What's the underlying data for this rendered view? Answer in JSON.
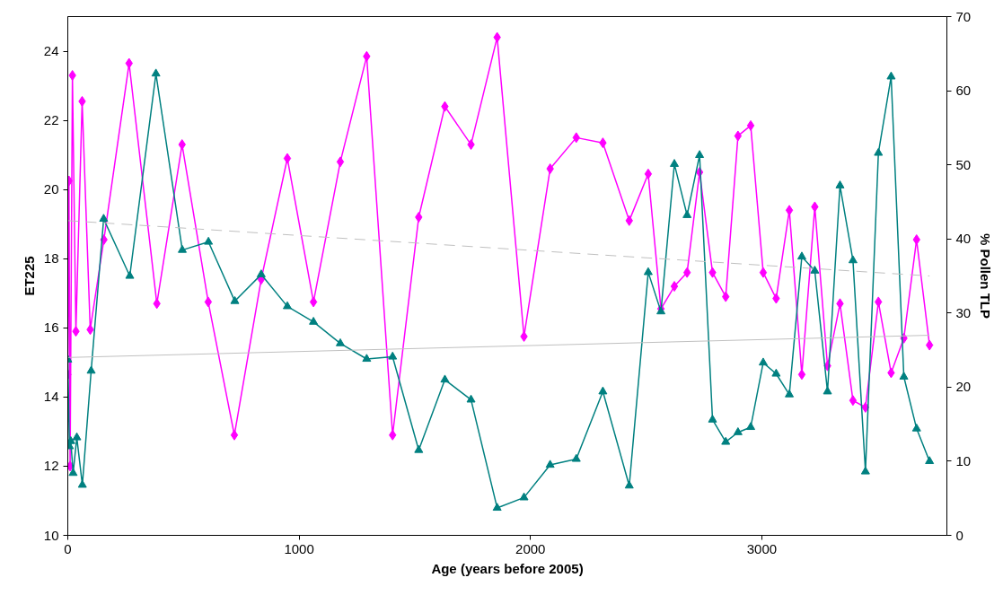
{
  "chart_data": {
    "type": "line",
    "xlabel": "Age (years before 2005)",
    "ylabel": "ET225",
    "y2label": "% Pollen TLP",
    "xlim": [
      0,
      3800
    ],
    "xticks": [
      0,
      1000,
      2000,
      3000
    ],
    "ylim": [
      10,
      25
    ],
    "yticks": [
      10,
      12,
      14,
      16,
      18,
      20,
      22,
      24
    ],
    "y2lim": [
      0,
      70
    ],
    "y2ticks": [
      0,
      10,
      20,
      30,
      40,
      50,
      60,
      70
    ],
    "grid": false,
    "series": [
      {
        "color": "#ff00ff",
        "marker": "diamond",
        "line_style": "solid",
        "x": [
          0,
          5,
          10,
          20,
          35,
          62,
          97,
          156,
          265,
          385,
          494,
          607,
          720,
          836,
          949,
          1062,
          1178,
          1292,
          1404,
          1517,
          1630,
          1743,
          1856,
          1972,
          2085,
          2198,
          2313,
          2427,
          2509,
          2564,
          2622,
          2677,
          2731,
          2787,
          2844,
          2897,
          2952,
          3006,
          3062,
          3119,
          3173,
          3229,
          3284,
          3338,
          3394,
          3448,
          3504,
          3559,
          3614,
          3669,
          3725
        ],
        "values": [
          14.65,
          20.25,
          12.0,
          23.3,
          15.9,
          22.55,
          15.95,
          18.55,
          23.65,
          16.7,
          21.3,
          16.75,
          12.9,
          17.4,
          20.9,
          16.75,
          20.8,
          23.85,
          12.9,
          19.2,
          22.4,
          21.3,
          24.4,
          15.75,
          20.6,
          21.5,
          21.35,
          19.1,
          20.45,
          16.55,
          17.2,
          17.6,
          20.5,
          17.6,
          16.9,
          21.55,
          21.85,
          17.6,
          16.85,
          19.4,
          14.65,
          19.5,
          14.9,
          16.7,
          13.9,
          13.7,
          16.75,
          14.7,
          15.7,
          18.55,
          15.5
        ]
      },
      {
        "color": "#008080",
        "marker": "triangle",
        "line_style": "solid",
        "axis": "y2",
        "x": [
          0,
          7,
          13,
          23,
          39,
          63,
          101,
          155,
          268,
          381,
          495,
          608,
          722,
          836,
          949,
          1062,
          1178,
          1292,
          1404,
          1517,
          1630,
          1743,
          1856,
          1972,
          2085,
          2198,
          2313,
          2427,
          2509,
          2564,
          2622,
          2677,
          2731,
          2787,
          2844,
          2897,
          2952,
          3006,
          3062,
          3119,
          3173,
          3229,
          3284,
          3338,
          3394,
          3448,
          3504,
          3559,
          3614,
          3669,
          3725
        ],
        "values": [
          23.7,
          12.0,
          12.7,
          8.4,
          13.2,
          6.8,
          22.2,
          42.7,
          35.0,
          62.3,
          38.5,
          39.6,
          31.6,
          35.2,
          30.9,
          28.8,
          25.9,
          23.8,
          24.1,
          11.5,
          21.0,
          18.3,
          3.7,
          5.1,
          9.5,
          10.3,
          19.4,
          6.7,
          35.5,
          30.2,
          50.1,
          43.2,
          51.3,
          15.6,
          12.6,
          13.9,
          14.6,
          23.3,
          21.8,
          19.0,
          37.6,
          35.7,
          19.4,
          47.2,
          37.1,
          8.6,
          51.6,
          61.9,
          21.4,
          14.4,
          10.0
        ]
      },
      {
        "color": "#c0c0c0",
        "marker": "none",
        "line_style": "dashed",
        "x": [
          0,
          3725
        ],
        "values": [
          19.1,
          17.5
        ]
      },
      {
        "color": "#c0c0c0",
        "marker": "none",
        "line_style": "solid",
        "axis": "y2",
        "x": [
          0,
          3725
        ],
        "values": [
          24.0,
          27.0
        ]
      }
    ]
  }
}
